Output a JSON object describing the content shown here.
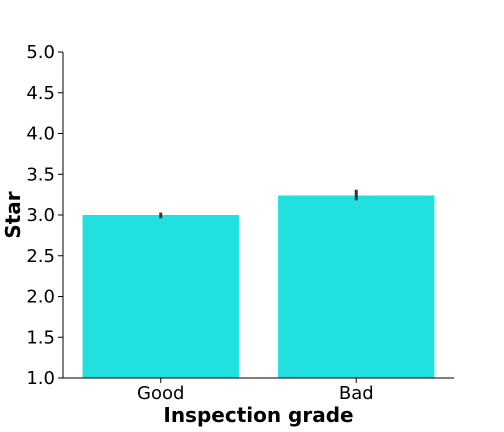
{
  "chart_data": {
    "type": "bar",
    "xlabel": "Inspection grade",
    "ylabel": "Star",
    "categories": [
      "Good",
      "Bad"
    ],
    "values": [
      3.0,
      3.24
    ],
    "error_bars": [
      {
        "low": 2.96,
        "high": 3.03
      },
      {
        "low": 3.18,
        "high": 3.31
      }
    ],
    "ylim": [
      1.0,
      5.0
    ],
    "yticks": [
      "1.0",
      "1.5",
      "2.0",
      "2.5",
      "3.0",
      "3.5",
      "4.0",
      "4.5",
      "5.0"
    ],
    "grid": false,
    "colors": {
      "bar": "#22e0e0",
      "error_bar": "#333333",
      "axis": "#000000"
    }
  }
}
